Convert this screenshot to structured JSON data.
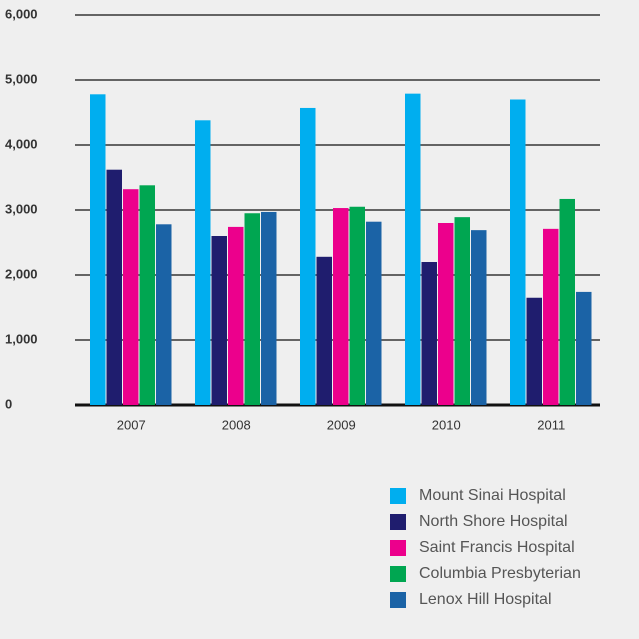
{
  "chart_data": {
    "type": "bar",
    "categories": [
      "2007",
      "2008",
      "2009",
      "2010",
      "2011"
    ],
    "series": [
      {
        "name": "Mount Sinai Hospital",
        "color": "#00aeef",
        "values": [
          4780,
          4380,
          4570,
          4790,
          4700
        ]
      },
      {
        "name": "North Shore Hospital",
        "color": "#1f1d6e",
        "values": [
          3620,
          2600,
          2280,
          2200,
          1650
        ]
      },
      {
        "name": "Saint Francis Hospital",
        "color": "#ec008c",
        "values": [
          3320,
          2740,
          3030,
          2800,
          2710
        ]
      },
      {
        "name": "Columbia Presbyterian",
        "color": "#00a651",
        "values": [
          3380,
          2950,
          3050,
          2890,
          3170
        ]
      },
      {
        "name": "Lenox Hill Hospital",
        "color": "#1b63a6",
        "values": [
          2780,
          2970,
          2820,
          2690,
          1740
        ]
      }
    ],
    "ylim": [
      0,
      6000
    ],
    "yticks": [
      0,
      {
        "value": 1000,
        "label": "1,000"
      },
      {
        "value": 2000,
        "label": "2,000"
      },
      {
        "value": 3000,
        "label": "3,000"
      },
      {
        "value": 4000,
        "label": "4,000"
      },
      {
        "value": 5000,
        "label": "5,000"
      },
      {
        "value": 6000,
        "label": "6,000"
      }
    ],
    "grid": true
  }
}
